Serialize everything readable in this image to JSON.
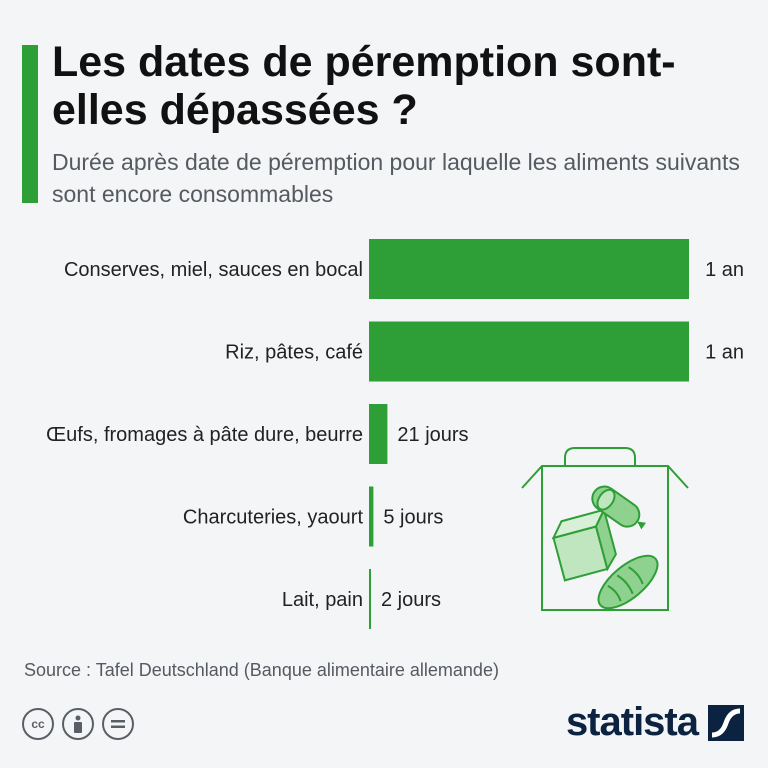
{
  "header": {
    "title": "Les dates de péremption sont-elles dépassées ?",
    "subtitle": "Durée après date de péremption pour laquelle les aliments suivants sont encore consommables"
  },
  "chart_data": {
    "type": "bar",
    "orientation": "horizontal",
    "categories": [
      "Conserves, miel, sauces en bocal",
      "Riz, pâtes, café",
      "Œufs, fromages à pâte dure, beurre",
      "Charcuteries, yaourt",
      "Lait, pain"
    ],
    "values": [
      365,
      365,
      21,
      5,
      2
    ],
    "value_labels": [
      "1 an",
      "1 an",
      "21 jours",
      "5 jours",
      "2 jours"
    ],
    "unit": "jours",
    "xlim": [
      0,
      365
    ],
    "grid": false,
    "bar_color": "#2e9e36"
  },
  "footer": {
    "source": "Source : Tafel Deutschland (Banque alimentaire allemande)",
    "brand": "statista",
    "license_icons": [
      "cc-icon",
      "attribution-icon",
      "no-derivatives-icon"
    ]
  },
  "colors": {
    "accent": "#2e9e36",
    "illustration": "#2e9e36",
    "brand": "#0b2341"
  }
}
